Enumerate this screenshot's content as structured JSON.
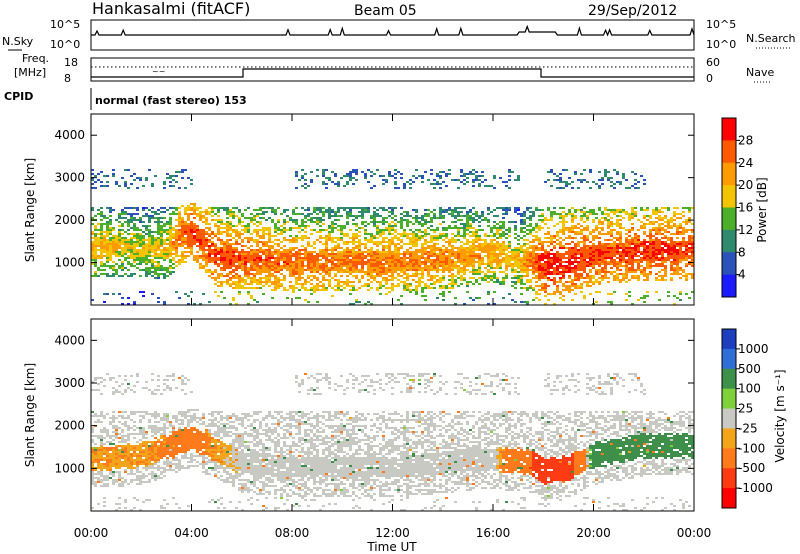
{
  "header": {
    "station": "Hankasalmi (fitACF)",
    "beam": "Beam 05",
    "date": "29/Sep/2012"
  },
  "noise_panel": {
    "left_label": "N.Sky",
    "right_label": "N.Search",
    "left_ticks": [
      "10^5",
      "10^0"
    ],
    "right_ticks": [
      "10^5",
      "10^0"
    ]
  },
  "freq_panel": {
    "left_label_1": "Freq.",
    "left_label_2": "[MHz]",
    "right_label": "Nave",
    "left_ticks": [
      "18",
      "8"
    ],
    "right_ticks": [
      "60",
      "0"
    ]
  },
  "cpid": {
    "label": "CPID",
    "value": "normal (fast stereo) 153"
  },
  "colorbars": {
    "power": {
      "label": "Power [dB]",
      "ticks": [
        "28",
        "24",
        "20",
        "16",
        "12",
        "8",
        "4"
      ],
      "colors": [
        "#ff0000",
        "#ff5a00",
        "#ff9a00",
        "#f3c400",
        "#4caf2a",
        "#2f8a6d",
        "#2b52b8",
        "#1b1bff"
      ]
    },
    "velocity": {
      "label": "Velocity [m s⁻¹]",
      "ticks": [
        "1000",
        "500",
        "100",
        "25",
        "-25",
        "-100",
        "-500",
        "-1000"
      ],
      "colors": [
        "#1d3fbf",
        "#2f6ed6",
        "#3e8f4a",
        "#7fd13b",
        "#c9c9c3",
        "#f2a51a",
        "#ff7a1a",
        "#ff3b14",
        "#ff0000"
      ]
    }
  },
  "chart_data": [
    {
      "type": "heatmap",
      "title": "",
      "xlabel": "Time UT",
      "ylabel": "Slant Range [km]",
      "xlim": [
        "00:00",
        "24:00"
      ],
      "ylim": [
        0,
        4500
      ],
      "x_ticks": [
        "00:00",
        "04:00",
        "08:00",
        "12:00",
        "16:00",
        "20:00",
        "00:00"
      ],
      "y_ticks": [
        1000,
        2000,
        3000,
        4000
      ],
      "colorbar": "Power [dB]",
      "description_points": {
        "hours": [
          0,
          1,
          2,
          3,
          3.5,
          4,
          4.5,
          5,
          6,
          8,
          10,
          12,
          14,
          16,
          17,
          17.5,
          18,
          19,
          20,
          21,
          22,
          23,
          24
        ],
        "main_band_km": [
          1350,
          1350,
          1320,
          1300,
          1600,
          1700,
          1350,
          1100,
          1050,
          1000,
          1000,
          1000,
          1050,
          1200,
          1050,
          1000,
          900,
          1000,
          1150,
          1200,
          1250,
          1250,
          1250
        ],
        "main_band_db": [
          22,
          20,
          18,
          20,
          26,
          28,
          28,
          28,
          27,
          26,
          25,
          25,
          24,
          22,
          20,
          26,
          30,
          30,
          28,
          28,
          29,
          29,
          28
        ]
      }
    },
    {
      "type": "heatmap",
      "title": "",
      "xlabel": "Time UT",
      "ylabel": "Slant Range [km]",
      "xlim": [
        "00:00",
        "24:00"
      ],
      "ylim": [
        0,
        4500
      ],
      "x_ticks": [
        "00:00",
        "04:00",
        "08:00",
        "12:00",
        "16:00",
        "20:00",
        "00:00"
      ],
      "y_ticks": [
        1000,
        2000,
        3000,
        4000
      ],
      "colorbar": "Velocity [m s⁻¹]",
      "description_points": {
        "hours": [
          0,
          2,
          4,
          6,
          8,
          12,
          16,
          17.5,
          18,
          19,
          20,
          22,
          24
        ],
        "main_band_km": [
          1200,
          1300,
          1700,
          1100,
          1000,
          1000,
          1200,
          1100,
          900,
          1000,
          1300,
          1500,
          1500
        ],
        "velocity_ms": [
          -50,
          -50,
          -100,
          0,
          0,
          0,
          0,
          -300,
          -500,
          -400,
          150,
          150,
          100
        ]
      }
    }
  ]
}
